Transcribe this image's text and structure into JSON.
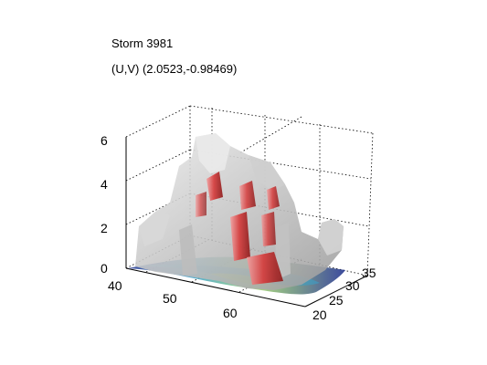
{
  "chart_data": {
    "type": "surface3d",
    "title": "Storm 3981",
    "subtitle": "(U,V) (2.0523,-0.98469)",
    "xlabel": "",
    "ylabel": "",
    "zlabel": "",
    "x_ticks": [
      "40",
      "50",
      "60"
    ],
    "y_ticks": [
      "20",
      "25",
      "30",
      "35"
    ],
    "z_ticks": [
      "0",
      "2",
      "4",
      "6"
    ],
    "xlim": [
      40,
      68
    ],
    "ylim": [
      18,
      37
    ],
    "zlim": [
      0,
      6
    ],
    "grid": true,
    "colors": {
      "cloud": "#b8b8b8",
      "cloud_highlight": "#e6e6e6",
      "core": "#d63a3a",
      "core_highlight": "#f08a8a",
      "ground_low": "#1a2b8c",
      "ground_mid": "#3aa0c8",
      "ground_high": "#9ad06a"
    }
  }
}
